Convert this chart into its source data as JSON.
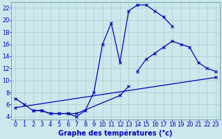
{
  "bg_color": "#cce8ec",
  "grid_color": "#aacccc",
  "line_color": "#0000bb",
  "xlabel": "Graphe des températures (°c)",
  "xlabel_fontsize": 7,
  "tick_fontsize": 6,
  "xlim": [
    -0.5,
    23.5
  ],
  "ylim": [
    3.5,
    23.0
  ],
  "yticks": [
    4,
    6,
    8,
    10,
    12,
    14,
    16,
    18,
    20,
    22
  ],
  "xticks": [
    0,
    1,
    2,
    3,
    4,
    5,
    6,
    7,
    8,
    9,
    10,
    11,
    12,
    13,
    14,
    15,
    16,
    17,
    18,
    19,
    20,
    21,
    22,
    23
  ],
  "curve1_x": [
    0,
    1,
    2,
    3,
    4,
    5,
    6,
    7,
    8,
    9,
    10,
    11,
    12,
    13,
    14,
    15,
    16,
    17,
    18
  ],
  "curve1_y": [
    7.0,
    6.0,
    5.0,
    5.0,
    4.5,
    4.5,
    4.5,
    4.0,
    5.0,
    8.0,
    16.0,
    19.5,
    13.0,
    21.5,
    22.5,
    22.5,
    21.5,
    20.5,
    19.0
  ],
  "curve2_x": [
    2,
    3,
    4,
    5,
    6,
    7,
    12,
    13,
    14,
    15,
    16,
    17,
    18,
    19,
    20,
    21,
    22,
    23
  ],
  "curve2_y": [
    5.0,
    5.0,
    4.5,
    4.5,
    4.5,
    4.5,
    7.5,
    9.0,
    11.5,
    13.5,
    14.5,
    15.5,
    16.5,
    16.0,
    15.5,
    13.0,
    12.0,
    11.5
  ],
  "curve2_break": 7,
  "curve3_x": [
    0,
    23
  ],
  "curve3_y": [
    5.5,
    10.5
  ]
}
